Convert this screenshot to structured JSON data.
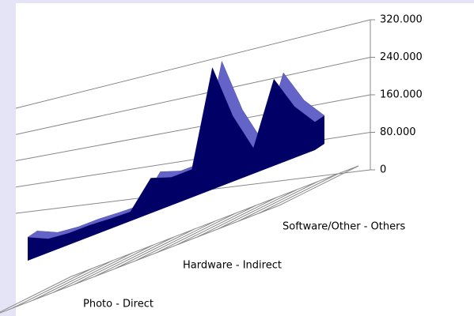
{
  "chart_data": {
    "type": "area3d",
    "categories": [
      "Photo - Direct",
      null,
      null,
      null,
      null,
      null,
      null,
      "Hardware - Indirect",
      null,
      null,
      null,
      null,
      null,
      null,
      "Software/Other - Others"
    ],
    "values": [
      50000,
      30000,
      25000,
      25000,
      22000,
      20000,
      75000,
      60000,
      60000,
      260000,
      140000,
      55000,
      185000,
      110000,
      60000
    ],
    "color": "#000066",
    "top_color": "#6464c8",
    "ylim": [
      0,
      320000
    ],
    "yticks": [
      0,
      {
        "value": 80000,
        "label": "80.000"
      },
      {
        "value": 160000,
        "label": "160.000"
      },
      {
        "value": 240000,
        "label": "240.000"
      },
      {
        "value": 320000,
        "label": "320.000"
      }
    ],
    "grid": true
  }
}
